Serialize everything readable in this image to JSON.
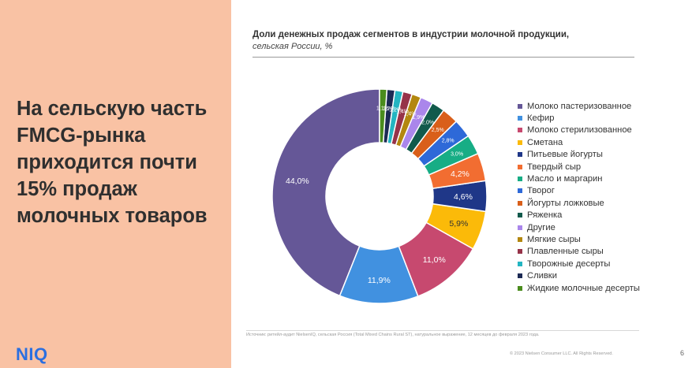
{
  "headline": "На сельскую часть FMCG-рынка приходится почти 15% продаж молочных товаров",
  "logo": "NIQ",
  "chart_data": {
    "type": "pie",
    "variant": "donut",
    "title": "Доли денежных продаж сегментов в индустрии молочной продукции,",
    "subtitle": "сельская России, %",
    "categories": [
      "Молоко пастеризованное",
      "Кефир",
      "Молоко стерилизованное",
      "Сметана",
      "Питьевые йогурты",
      "Твердый сыр",
      "Масло и маргарин",
      "Творог",
      "Йогурты ложковые",
      "Ряженка",
      "Другие",
      "Мягкие сыры",
      "Плавленные сыры",
      "Творожные десерты",
      "Сливки",
      "Жидкие молочные десерты"
    ],
    "values": [
      44.0,
      11.9,
      11.0,
      5.9,
      4.6,
      4.2,
      3.0,
      2.8,
      2.5,
      2.0,
      1.9,
      1.4,
      1.4,
      1.2,
      1.2,
      1.1
    ],
    "value_labels": [
      "44,0%",
      "11,9%",
      "11,0%",
      "5,9%",
      "4,6%",
      "4,2%",
      "3,0%",
      "2,8%",
      "2,5%",
      "2,0%",
      "1,9%",
      "1,4%",
      "1,4%",
      "1,2%",
      "1,2%",
      "1,1%"
    ],
    "colors": [
      "#655797",
      "#4191e0",
      "#c7496f",
      "#fbba09",
      "#1f3788",
      "#f26d31",
      "#17ad85",
      "#2e69d8",
      "#d95f1a",
      "#115a4c",
      "#aa86eb",
      "#b3870e",
      "#963349",
      "#23b5c2",
      "#1c2a54",
      "#4a8c1d"
    ],
    "legend_position": "right"
  },
  "source": "Источник: ритейл-аудит NielsenIQ, сельская Россия (Total Mixed Chains Rural ST), натуральное выражение, 12 месяцев до февраля 2023 года.",
  "copyright": "© 2023 Nielsen Consumer LLC. All Rights Reserved.",
  "page_number": "6"
}
